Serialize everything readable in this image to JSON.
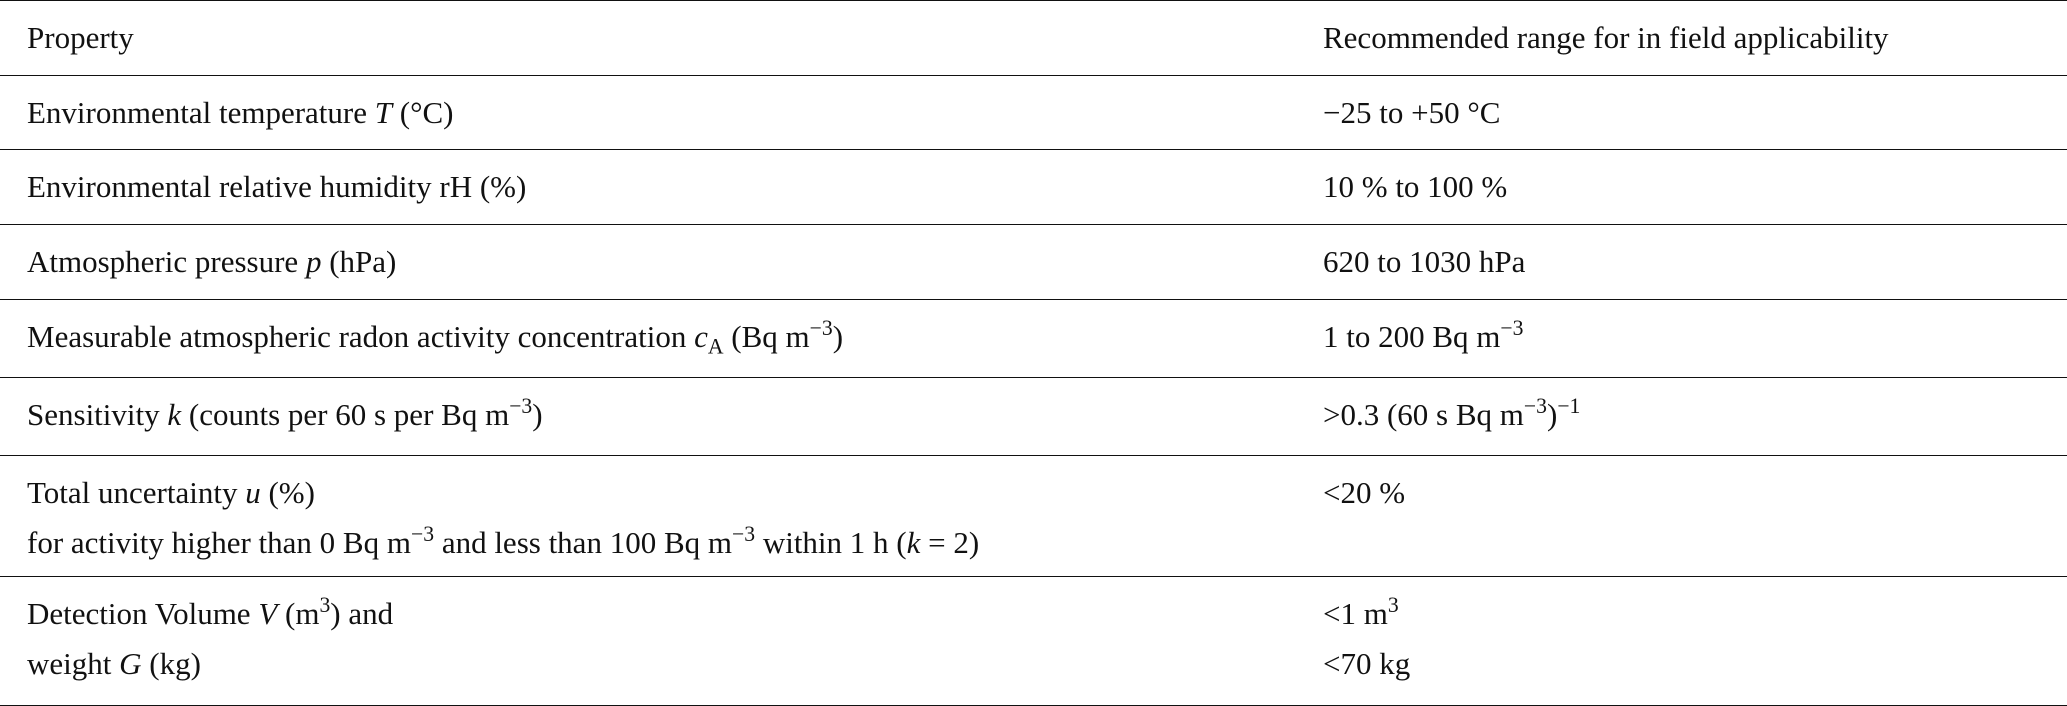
{
  "table": {
    "header": [
      "Property",
      "Recommended range for in field applicability"
    ],
    "rows": [
      [
        [
          "Environmental temperature ",
          "T",
          " (°C)"
        ],
        [
          "−25 to +50 °C"
        ]
      ],
      [
        [
          "Environmental relative humidity rH (%)"
        ],
        [
          "10 % to 100 %"
        ]
      ],
      [
        [
          "Atmospheric pressure ",
          "p",
          " (hPa)"
        ],
        [
          "620 to 1030 hPa"
        ]
      ],
      [
        [
          "Measurable atmospheric radon activity concentration ",
          "c",
          "A",
          " (Bq m",
          "−3",
          ")"
        ],
        [
          "1 to 200 Bq m",
          "−3"
        ]
      ],
      [
        [
          "Sensitivity ",
          "k",
          " (counts per 60 s per Bq m",
          "−3",
          ")"
        ],
        [
          ">0.3 (60 s Bq m",
          "−3",
          ")",
          "−1"
        ]
      ],
      [
        [
          "Total uncertainty ",
          "u",
          " (%)",
          "for activity higher than 0 Bq m",
          "−3",
          " and less than 100 Bq m",
          "−3",
          " within 1 h (",
          "k",
          " = 2)"
        ],
        [
          "<20 %"
        ]
      ],
      [
        [
          "Detection Volume ",
          "V",
          " (m",
          "3",
          ") and",
          "weight ",
          "G",
          " (kg)"
        ],
        [
          "<1 m",
          "3",
          "<70 kg"
        ]
      ]
    ]
  }
}
